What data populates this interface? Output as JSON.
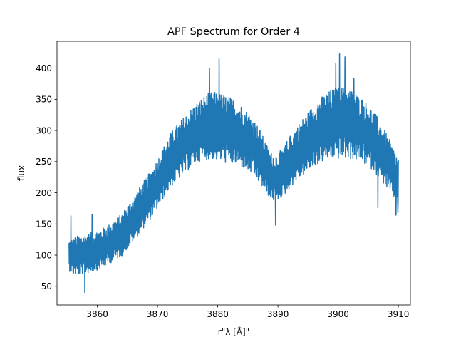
{
  "chart_data": {
    "type": "line",
    "title": "APF Spectrum for Order 4",
    "xlabel": "r\"λ [Å]\"",
    "ylabel": "flux",
    "xlim": [
      3853.3,
      3912.0
    ],
    "ylim": [
      20,
      443
    ],
    "xticks": [
      3860,
      3870,
      3880,
      3890,
      3900,
      3910
    ],
    "yticks": [
      50,
      100,
      150,
      200,
      250,
      300,
      350,
      400
    ],
    "grid": false,
    "series": [
      {
        "color": "#1f77b4",
        "x_start": 3855.3,
        "x_end": 3910.0,
        "envelope": {
          "x": [
            3855.3,
            3856.0,
            3857.0,
            3858.0,
            3859.0,
            3860.0,
            3861.0,
            3862.0,
            3863.0,
            3864.0,
            3865.0,
            3866.0,
            3867.0,
            3868.0,
            3869.0,
            3870.0,
            3871.0,
            3872.0,
            3873.0,
            3874.0,
            3875.0,
            3876.0,
            3877.0,
            3878.0,
            3879.0,
            3880.0,
            3881.0,
            3882.0,
            3883.0,
            3884.0,
            3885.0,
            3886.0,
            3887.0,
            3888.0,
            3889.0,
            3890.0,
            3891.0,
            3892.0,
            3893.0,
            3894.0,
            3895.0,
            3896.0,
            3897.0,
            3898.0,
            3899.0,
            3900.0,
            3901.0,
            3902.0,
            3903.0,
            3904.0,
            3905.0,
            3906.0,
            3907.0,
            3908.0,
            3909.0,
            3910.0
          ],
          "center": [
            100,
            98,
            100,
            102,
            104,
            108,
            112,
            118,
            125,
            132,
            145,
            158,
            172,
            185,
            198,
            215,
            232,
            250,
            262,
            272,
            282,
            292,
            300,
            305,
            308,
            306,
            303,
            300,
            296,
            290,
            282,
            272,
            258,
            240,
            225,
            225,
            235,
            250,
            262,
            272,
            282,
            292,
            300,
            306,
            310,
            312,
            312,
            310,
            306,
            300,
            292,
            282,
            268,
            252,
            235,
            220
          ],
          "spread": [
            25,
            30,
            32,
            32,
            32,
            32,
            32,
            32,
            33,
            34,
            35,
            36,
            37,
            38,
            39,
            40,
            42,
            44,
            45,
            46,
            47,
            48,
            50,
            52,
            54,
            55,
            55,
            54,
            52,
            50,
            48,
            46,
            44,
            40,
            38,
            38,
            40,
            42,
            44,
            46,
            48,
            50,
            52,
            54,
            56,
            58,
            58,
            56,
            54,
            52,
            50,
            48,
            46,
            44,
            40,
            38
          ]
        },
        "extremes": {
          "x": [
            3855.6,
            3857.9,
            3859.1,
            3878.6,
            3880.2,
            3889.6,
            3899.6,
            3900.2,
            3901.1,
            3902.6,
            3906.6,
            3909.6,
            3909.9
          ],
          "y": [
            163,
            40,
            165,
            400,
            415,
            148,
            408,
            423,
            418,
            383,
            176,
            164,
            168
          ]
        }
      }
    ]
  }
}
